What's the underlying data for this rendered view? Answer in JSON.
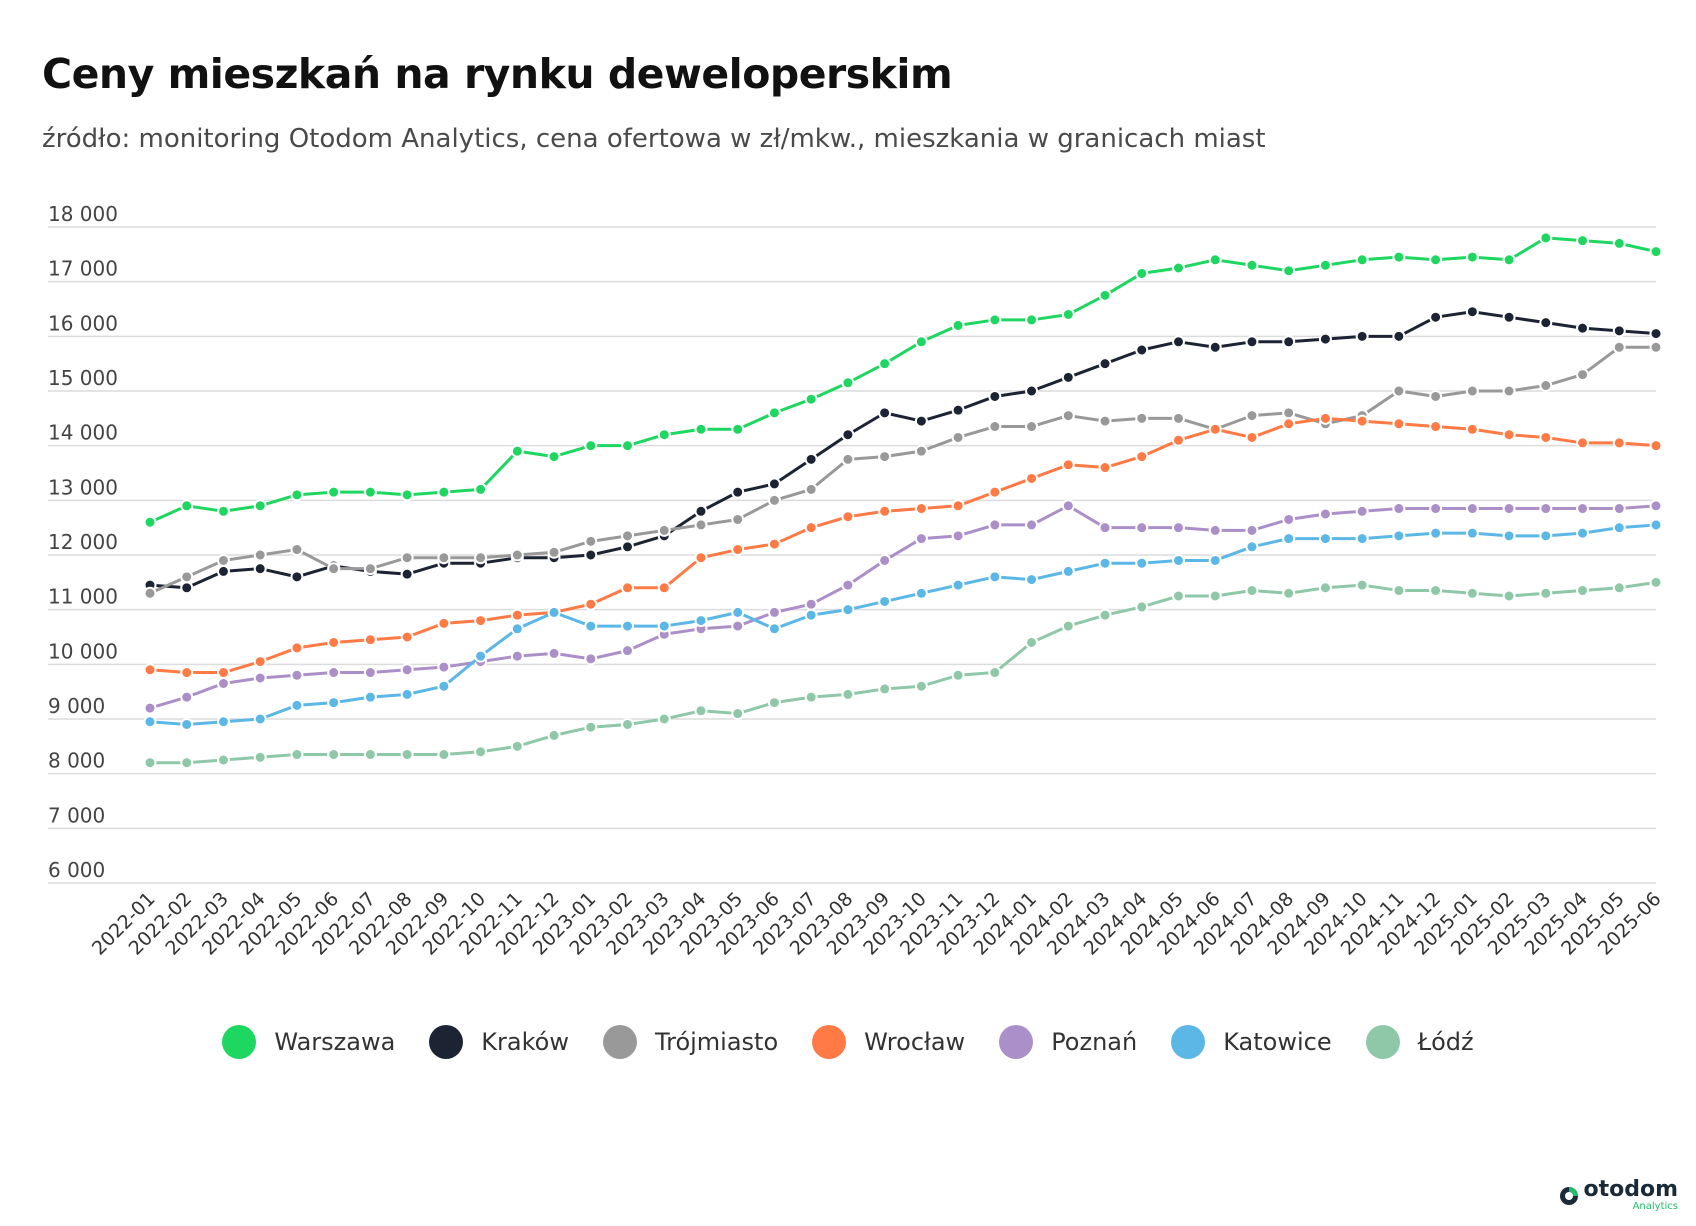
{
  "chart_data": {
    "type": "line",
    "title": "Ceny mieszkań na rynku deweloperskim",
    "subtitle": "źródło: monitoring Otodom Analytics, cena ofertowa w zł/mkw., mieszkania w granicach miast",
    "xlabel": "",
    "ylabel": "",
    "ylim": [
      6000,
      18000
    ],
    "yticks": [
      6000,
      7000,
      8000,
      9000,
      10000,
      11000,
      12000,
      13000,
      14000,
      15000,
      16000,
      17000,
      18000
    ],
    "ytick_labels": [
      "6 000",
      "7 000",
      "8 000",
      "9 000",
      "10 000",
      "11 000",
      "12 000",
      "13 000",
      "14 000",
      "15 000",
      "16 000",
      "17 000",
      "18 000"
    ],
    "grid": "horizontal",
    "legend_position": "bottom",
    "categories": [
      "2022-01",
      "2022-02",
      "2022-03",
      "2022-04",
      "2022-05",
      "2022-06",
      "2022-07",
      "2022-08",
      "2022-09",
      "2022-10",
      "2022-11",
      "2022-12",
      "2023-01",
      "2023-02",
      "2023-03",
      "2023-04",
      "2023-05",
      "2023-06",
      "2023-07",
      "2023-08",
      "2023-09",
      "2023-10",
      "2023-11",
      "2023-12",
      "2024-01",
      "2024-02",
      "2024-03",
      "2024-04",
      "2024-05",
      "2024-06",
      "2024-07",
      "2024-08",
      "2024-09",
      "2024-10",
      "2024-11",
      "2024-12",
      "2025-01",
      "2025-02",
      "2025-03",
      "2025-04",
      "2025-05",
      "2025-06"
    ],
    "series": [
      {
        "name": "Warszawa",
        "color": "#1ed760",
        "values": [
          12600,
          12900,
          12800,
          12900,
          13100,
          13150,
          13150,
          13100,
          13150,
          13200,
          13900,
          13800,
          14000,
          14000,
          14200,
          14300,
          14300,
          14600,
          14850,
          15150,
          15500,
          15900,
          16200,
          16300,
          16300,
          16400,
          16750,
          17150,
          17250,
          17400,
          17300,
          17200,
          17300,
          17400,
          17450,
          17400,
          17450,
          17400,
          17800,
          17750,
          17700,
          17550
        ]
      },
      {
        "name": "Kraków",
        "color": "#1c2333",
        "values": [
          11450,
          11400,
          11700,
          11750,
          11600,
          11800,
          11700,
          11650,
          11850,
          11850,
          11950,
          11950,
          12000,
          12150,
          12350,
          12800,
          13150,
          13300,
          13750,
          14200,
          14600,
          14450,
          14650,
          14900,
          15000,
          15250,
          15500,
          15750,
          15900,
          15800,
          15900,
          15900,
          15950,
          16000,
          16000,
          16350,
          16450,
          16350,
          16250,
          16150,
          16100,
          16050
        ]
      },
      {
        "name": "Trójmiasto",
        "color": "#999999",
        "values": [
          11300,
          11600,
          11900,
          12000,
          12100,
          11750,
          11750,
          11950,
          11950,
          11950,
          12000,
          12050,
          12250,
          12350,
          12450,
          12550,
          12650,
          13000,
          13200,
          13750,
          13800,
          13900,
          14150,
          14350,
          14350,
          14550,
          14450,
          14500,
          14500,
          14300,
          14550,
          14600,
          14400,
          14550,
          15000,
          14900,
          15000,
          15000,
          15100,
          15300,
          15800,
          15800
        ]
      },
      {
        "name": "Wrocław",
        "color": "#ff7a45",
        "values": [
          9900,
          9850,
          9850,
          10050,
          10300,
          10400,
          10450,
          10500,
          10750,
          10800,
          10900,
          10950,
          11100,
          11400,
          11400,
          11950,
          12100,
          12200,
          12500,
          12700,
          12800,
          12850,
          12900,
          13150,
          13400,
          13650,
          13600,
          13800,
          14100,
          14300,
          14150,
          14400,
          14500,
          14450,
          14400,
          14350,
          14300,
          14200,
          14150,
          14050,
          14050,
          14000
        ]
      },
      {
        "name": "Poznań",
        "color": "#ab8fc8",
        "values": [
          9200,
          9400,
          9650,
          9750,
          9800,
          9850,
          9850,
          9900,
          9950,
          10050,
          10150,
          10200,
          10100,
          10250,
          10550,
          10650,
          10700,
          10950,
          11100,
          11450,
          11900,
          12300,
          12350,
          12550,
          12550,
          12900,
          12500,
          12500,
          12500,
          12450,
          12450,
          12650,
          12750,
          12800,
          12850,
          12850,
          12850,
          12850,
          12850,
          12850,
          12850,
          12900
        ]
      },
      {
        "name": "Katowice",
        "color": "#5bb7e5",
        "values": [
          8950,
          8900,
          8950,
          9000,
          9250,
          9300,
          9400,
          9450,
          9600,
          10150,
          10650,
          10950,
          10700,
          10700,
          10700,
          10800,
          10950,
          10650,
          10900,
          11000,
          11150,
          11300,
          11450,
          11600,
          11550,
          11700,
          11850,
          11850,
          11900,
          11900,
          12150,
          12300,
          12300,
          12300,
          12350,
          12400,
          12400,
          12350,
          12350,
          12400,
          12500,
          12550
        ]
      },
      {
        "name": "Łódź",
        "color": "#8fc8a8",
        "values": [
          8200,
          8200,
          8250,
          8300,
          8350,
          8350,
          8350,
          8350,
          8350,
          8400,
          8500,
          8700,
          8850,
          8900,
          9000,
          9150,
          9100,
          9300,
          9400,
          9450,
          9550,
          9600,
          9800,
          9850,
          10400,
          10700,
          10900,
          11050,
          11250,
          11250,
          11350,
          11300,
          11400,
          11450,
          11350,
          11350,
          11300,
          11250,
          11300,
          11350,
          11400,
          11500
        ]
      }
    ]
  },
  "brand": {
    "name": "otodom",
    "sub": "Analytics",
    "accent": "#1fbf6a"
  }
}
